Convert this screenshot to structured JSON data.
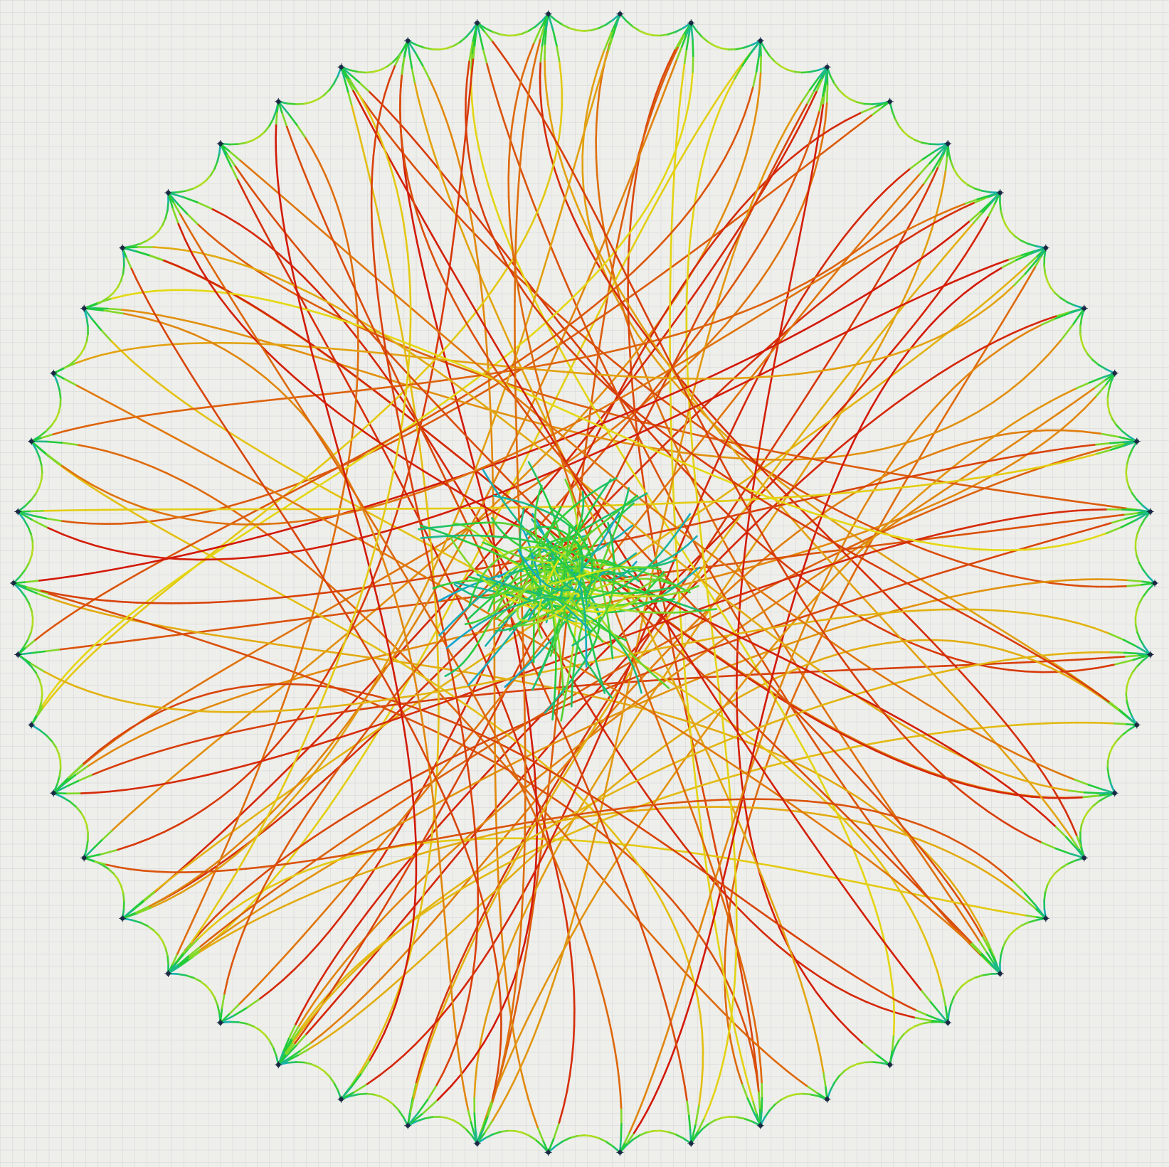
{
  "scene": {
    "background_color": "#eeeeeb",
    "grid_color": "#c9cbcb",
    "grid_major_color": "#b7b9ba",
    "anchor_color": "#1a2a44",
    "node_count": 50,
    "color_scale": [
      "#1048b8",
      "#14a8d0",
      "#22cc3a",
      "#e4e414",
      "#e07a0c",
      "#d21808"
    ],
    "color_scale_meaning": "low-to-high"
  }
}
